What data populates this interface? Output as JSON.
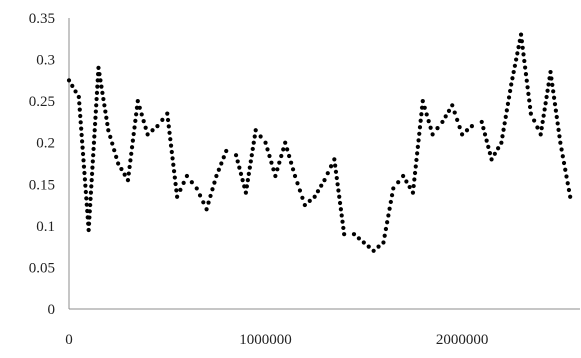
{
  "colors": {
    "line": "#000000",
    "axis": "#8c8c8c",
    "text": "#222222"
  },
  "chart_data": {
    "type": "line",
    "style": "dotted",
    "title": "",
    "xlabel": "",
    "ylabel": "",
    "xlim": [
      0,
      2600000
    ],
    "ylim": [
      0,
      0.35
    ],
    "yticks": [
      "0",
      "0.05",
      "0.1",
      "0.15",
      "0.2",
      "0.25",
      "0.3",
      "0.35"
    ],
    "xticks": [
      "0",
      "1000000",
      "2000000"
    ],
    "grid": false,
    "legend": "none",
    "series": [
      {
        "x": [
          0,
          50000,
          100000,
          150000,
          200000,
          250000,
          300000,
          350000,
          400000,
          450000,
          500000,
          550000,
          600000,
          650000,
          700000,
          750000,
          800000,
          850000,
          900000,
          950000,
          1000000,
          1050000,
          1100000,
          1150000,
          1200000,
          1250000,
          1300000,
          1350000,
          1400000,
          1450000,
          1500000,
          1550000,
          1600000,
          1650000,
          1700000,
          1750000,
          1800000,
          1850000,
          1900000,
          1950000,
          2000000,
          2050000,
          2100000,
          2150000,
          2200000,
          2250000,
          2300000,
          2350000,
          2400000,
          2450000,
          2500000,
          2550000
        ],
        "y": [
          0.275,
          0.255,
          0.095,
          0.29,
          0.215,
          0.175,
          0.155,
          0.25,
          0.21,
          0.22,
          0.235,
          0.135,
          0.16,
          0.145,
          0.12,
          0.16,
          0.19,
          0.185,
          0.14,
          0.215,
          0.2,
          0.16,
          0.2,
          0.16,
          0.125,
          0.135,
          0.155,
          0.18,
          0.09,
          0.09,
          0.08,
          0.07,
          0.08,
          0.145,
          0.16,
          0.14,
          0.25,
          0.21,
          0.225,
          0.245,
          0.21,
          0.22,
          0.225,
          0.18,
          0.2,
          0.27,
          0.33,
          0.235,
          0.21,
          0.285,
          0.2,
          0.135
        ]
      }
    ]
  }
}
